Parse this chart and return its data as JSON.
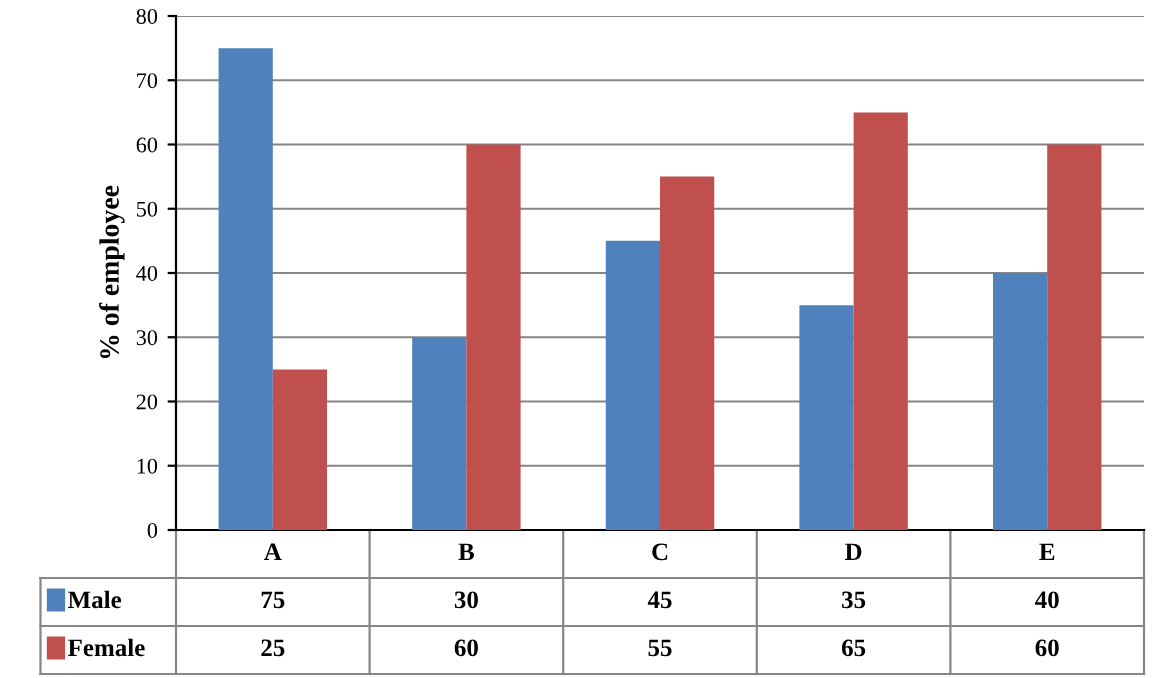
{
  "chart_data": {
    "type": "bar",
    "ylabel": "% of employee",
    "categories": [
      "A",
      "B",
      "C",
      "D",
      "E"
    ],
    "series": [
      {
        "name": "Male",
        "color": "#4f81bd",
        "values": [
          75,
          30,
          45,
          35,
          40
        ]
      },
      {
        "name": "Female",
        "color": "#c0504d",
        "values": [
          25,
          60,
          55,
          65,
          60
        ]
      }
    ],
    "ylim": [
      0,
      80
    ],
    "yticks": [
      0,
      10,
      20,
      30,
      40,
      50,
      60,
      70,
      80
    ],
    "grid": "y",
    "legend": "bottom",
    "data_labels": true
  }
}
